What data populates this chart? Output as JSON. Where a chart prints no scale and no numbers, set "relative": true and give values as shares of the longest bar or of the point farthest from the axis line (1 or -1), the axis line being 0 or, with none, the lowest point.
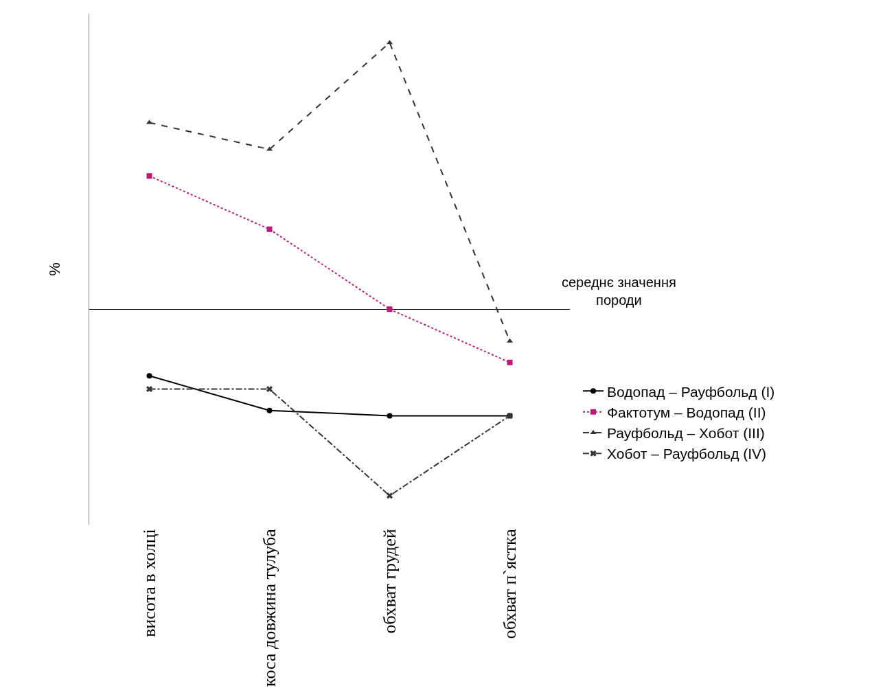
{
  "chart_data": {
    "type": "line",
    "relative": true,
    "ylabel": "%",
    "categories": [
      "висота в холці",
      "коса довжина тулуба",
      "обхват грудей",
      "обхват п`ястка"
    ],
    "series": [
      {
        "name": "Водопад – Рауфбольд (I)",
        "color": "#000000",
        "values": [
          -0.25,
          -0.38,
          -0.4,
          -0.4
        ],
        "marker": "circle",
        "line_style": "solid"
      },
      {
        "name": "Фактотум – Водопад (II)",
        "color": "#c0187a",
        "values": [
          0.5,
          0.3,
          0,
          -0.2
        ],
        "marker": "square",
        "line_style": "dotted"
      },
      {
        "name": "Рауфбольд – Хобот (III)",
        "color": "#333333",
        "values": [
          0.7,
          0.6,
          1,
          -0.12
        ],
        "marker": "triangle",
        "line_style": "dashed"
      },
      {
        "name": "Хобот – Рауфбольд (IV)",
        "color": "#333333",
        "values": [
          -0.3,
          -0.3,
          -0.7,
          -0.4
        ],
        "marker": "cross",
        "line_style": "dashdot"
      }
    ],
    "annotations": [
      "середнє значення\nпороди"
    ],
    "legend": "right",
    "grid": false
  }
}
